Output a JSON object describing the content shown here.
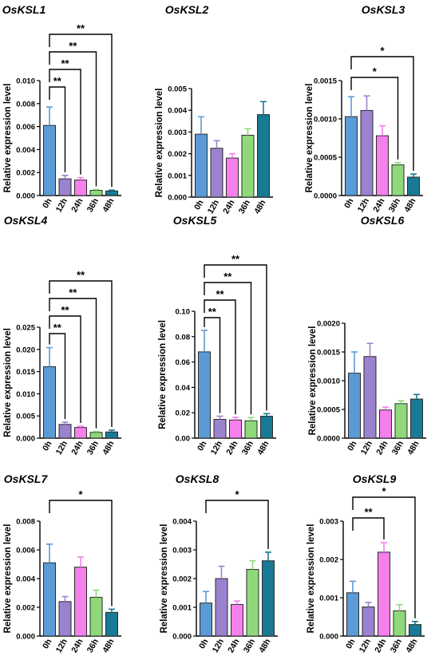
{
  "figure": {
    "categories": [
      "0h",
      "12h",
      "24h",
      "36h",
      "48h"
    ],
    "ylabel": "Relative expression level",
    "colors": [
      "#5B9BD5",
      "#9B82CF",
      "#F57FEB",
      "#8FD97A",
      "#187A94"
    ]
  },
  "chart_data": [
    {
      "type": "bar",
      "title": "OsKSL1",
      "categories": [
        "0h",
        "12h",
        "24h",
        "36h",
        "48h"
      ],
      "ylabel": "Relative expression level",
      "ylim": [
        0,
        0.01
      ],
      "ticks": [
        "0.000",
        "0.002",
        "0.004",
        "0.006",
        "0.008",
        "0.010"
      ],
      "values": [
        0.0061,
        0.00145,
        0.00135,
        0.00045,
        0.0004
      ],
      "errors": [
        0.0016,
        0.0003,
        0.0002,
        7e-05,
        7e-05
      ],
      "significance": [
        {
          "from": "0h",
          "to": "12h",
          "label": "**"
        },
        {
          "from": "0h",
          "to": "24h",
          "label": "**"
        },
        {
          "from": "0h",
          "to": "36h",
          "label": "**"
        },
        {
          "from": "0h",
          "to": "48h",
          "label": "**"
        }
      ]
    },
    {
      "type": "bar",
      "title": "OsKSL2",
      "categories": [
        "0h",
        "12h",
        "24h",
        "36h",
        "48h"
      ],
      "ylabel": "Relative expression level",
      "ylim": [
        0,
        0.005
      ],
      "ticks": [
        "0.000",
        "0.001",
        "0.002",
        "0.003",
        "0.004",
        "0.005"
      ],
      "values": [
        0.0029,
        0.00225,
        0.0018,
        0.00285,
        0.0038
      ],
      "errors": [
        0.0008,
        0.00035,
        0.0002,
        0.0003,
        0.0006
      ],
      "significance": []
    },
    {
      "type": "bar",
      "title": "OsKSL3",
      "categories": [
        "0h",
        "12h",
        "24h",
        "36h",
        "48h"
      ],
      "ylabel": "Relative expression level",
      "ylim": [
        0,
        0.0015
      ],
      "ticks": [
        "0.0000",
        "0.0005",
        "0.0010",
        "0.0015"
      ],
      "values": [
        0.00103,
        0.00111,
        0.00078,
        0.0004,
        0.00024
      ],
      "errors": [
        0.00026,
        0.00019,
        0.00013,
        3e-05,
        4e-05
      ],
      "significance": [
        {
          "from": "0h",
          "to": "36h",
          "label": "*"
        },
        {
          "from": "0h",
          "to": "48h",
          "label": "*"
        }
      ]
    },
    {
      "type": "bar",
      "title": "OsKSL4",
      "categories": [
        "0h",
        "12h",
        "24h",
        "36h",
        "48h"
      ],
      "ylabel": "Relative expression level",
      "ylim": [
        0,
        0.025
      ],
      "ticks": [
        "0.000",
        "0.005",
        "0.010",
        "0.015",
        "0.020",
        "0.025"
      ],
      "values": [
        0.0161,
        0.0031,
        0.0024,
        0.0013,
        0.0014
      ],
      "errors": [
        0.0043,
        0.0005,
        0.0003,
        0.0002,
        0.0004
      ],
      "significance": [
        {
          "from": "0h",
          "to": "12h",
          "label": "**"
        },
        {
          "from": "0h",
          "to": "24h",
          "label": "**"
        },
        {
          "from": "0h",
          "to": "36h",
          "label": "**"
        },
        {
          "from": "0h",
          "to": "48h",
          "label": "**"
        }
      ]
    },
    {
      "type": "bar",
      "title": "OsKSL5",
      "categories": [
        "0h",
        "12h",
        "24h",
        "36h",
        "48h"
      ],
      "ylabel": "Relative expression level",
      "ylim": [
        0,
        0.1
      ],
      "ticks": [
        "0.00",
        "0.02",
        "0.04",
        "0.06",
        "0.08",
        "0.10"
      ],
      "values": [
        0.068,
        0.0148,
        0.0143,
        0.0137,
        0.0173
      ],
      "errors": [
        0.017,
        0.0025,
        0.002,
        0.0025,
        0.002
      ],
      "significance": [
        {
          "from": "0h",
          "to": "12h",
          "label": "**"
        },
        {
          "from": "0h",
          "to": "24h",
          "label": "**"
        },
        {
          "from": "0h",
          "to": "36h",
          "label": "**"
        },
        {
          "from": "0h",
          "to": "48h",
          "label": "**"
        }
      ]
    },
    {
      "type": "bar",
      "title": "OsKSL6",
      "categories": [
        "0h",
        "12h",
        "24h",
        "36h",
        "48h"
      ],
      "ylabel": "Relative expression level",
      "ylim": [
        0,
        0.002
      ],
      "ticks": [
        "0.0000",
        "0.0005",
        "0.0010",
        "0.0015",
        "0.0020"
      ],
      "values": [
        0.00113,
        0.00142,
        0.00049,
        0.0006,
        0.00068
      ],
      "errors": [
        0.00037,
        0.00023,
        5e-05,
        5e-05,
        8e-05
      ],
      "significance": []
    },
    {
      "type": "bar",
      "title": "OsKSL7",
      "categories": [
        "0h",
        "12h",
        "24h",
        "36h",
        "48h"
      ],
      "ylabel": "Relative expression level",
      "ylim": [
        0,
        0.008
      ],
      "ticks": [
        "0.000",
        "0.002",
        "0.004",
        "0.006",
        "0.008"
      ],
      "values": [
        0.0051,
        0.0024,
        0.0048,
        0.0027,
        0.00165
      ],
      "errors": [
        0.0013,
        0.00035,
        0.0007,
        0.0005,
        0.00022
      ],
      "significance": [
        {
          "from": "0h",
          "to": "48h",
          "label": "*"
        }
      ]
    },
    {
      "type": "bar",
      "title": "OsKSL8",
      "categories": [
        "0h",
        "12h",
        "24h",
        "36h",
        "48h"
      ],
      "ylabel": "Relative expression level",
      "ylim": [
        0,
        0.004
      ],
      "ticks": [
        "0.000",
        "0.001",
        "0.002",
        "0.003",
        "0.004"
      ],
      "values": [
        0.00115,
        0.002,
        0.0011,
        0.00232,
        0.00262
      ],
      "errors": [
        0.0004,
        0.00043,
        0.00012,
        0.0003,
        0.0003
      ],
      "significance": [
        {
          "from": "0h",
          "to": "48h",
          "label": "*"
        }
      ]
    },
    {
      "type": "bar",
      "title": "OsKSL9",
      "categories": [
        "0h",
        "12h",
        "24h",
        "36h",
        "48h"
      ],
      "ylabel": "Relative expression level",
      "ylim": [
        0,
        0.003
      ],
      "ticks": [
        "0.000",
        "0.001",
        "0.002",
        "0.003"
      ],
      "values": [
        0.00113,
        0.00076,
        0.00219,
        0.00066,
        0.0003
      ],
      "errors": [
        0.0003,
        0.00012,
        0.00025,
        0.00016,
        8e-05
      ],
      "significance": [
        {
          "from": "0h",
          "to": "24h",
          "label": "**"
        },
        {
          "from": "0h",
          "to": "48h",
          "label": "*"
        }
      ]
    }
  ]
}
